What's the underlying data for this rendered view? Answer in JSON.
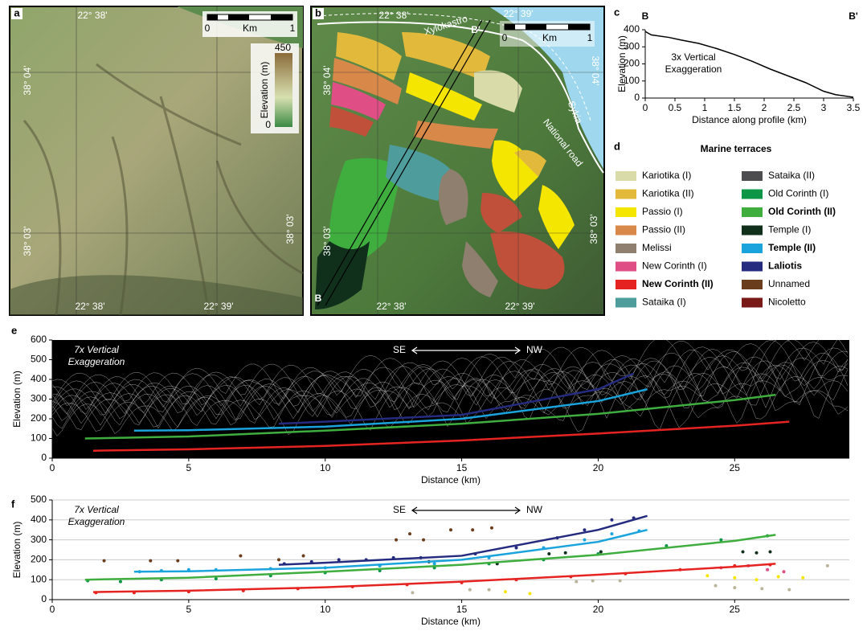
{
  "map_a": {
    "label": "a",
    "top_lon": "22° 38'",
    "scale_zero": "0",
    "scale_unit": "Km",
    "scale_one": "1",
    "colorbar_title": "Elevation (m)",
    "colorbar_max": "450",
    "colorbar_min": "0",
    "left_lat_top": "38° 04'",
    "left_lat_bottom": "38° 03'",
    "right_lat": "38° 03'",
    "bottom_lon_left": "22° 38'",
    "bottom_lon_right": "22° 39'"
  },
  "map_b": {
    "label": "b",
    "top_lon_left": "22° 38'",
    "top_lon_right": "22° 39'",
    "place_1": "Xylokastro",
    "place_2": "Sykia",
    "road": "National road",
    "profile_end": "B'",
    "profile_start": "B",
    "scale_zero": "0",
    "scale_unit": "Km",
    "scale_one": "1",
    "left_lat_top": "38° 04'",
    "left_lat_bottom": "38° 03'",
    "right_lat_top": "38° 04'",
    "right_lat_bottom": "38° 03'",
    "bottom_lon_left": "22° 38'",
    "bottom_lon_right": "22° 39'"
  },
  "legend_d": {
    "label": "d",
    "title": "Marine terraces",
    "items": [
      {
        "label": "Kariotika (I)",
        "color": "#d9dca8",
        "bold": false
      },
      {
        "label": "Kariotika (II)",
        "color": "#e2b93b",
        "bold": false
      },
      {
        "label": "Passio (I)",
        "color": "#f5e600",
        "bold": false
      },
      {
        "label": "Passio (II)",
        "color": "#d8894a",
        "bold": false
      },
      {
        "label": "Melissi",
        "color": "#8e7f6e",
        "bold": false
      },
      {
        "label": "New Corinth (I)",
        "color": "#df4f86",
        "bold": false
      },
      {
        "label": "New Corinth (II)",
        "color": "#e52421",
        "bold": true
      },
      {
        "label": "Sataika (I)",
        "color": "#4f9c9c",
        "bold": false
      },
      {
        "label": "Sataika (II)",
        "color": "#4d4d4f",
        "bold": false
      },
      {
        "label": "Old Corinth (I)",
        "color": "#0d9646",
        "bold": false
      },
      {
        "label": "Old Corinth (II)",
        "color": "#3fae3f",
        "bold": true
      },
      {
        "label": "Temple (I)",
        "color": "#10301c",
        "bold": false
      },
      {
        "label": "Temple (II)",
        "color": "#1aa3dc",
        "bold": true
      },
      {
        "label": "Laliotis",
        "color": "#252c7f",
        "bold": true
      },
      {
        "label": "Unnamed",
        "color": "#6a3e1d",
        "bold": false
      },
      {
        "label": "Nicoletto",
        "color": "#7a1a18",
        "bold": false
      }
    ]
  },
  "chart_data": [
    {
      "type": "line",
      "label": "c",
      "start_label": "B",
      "end_label": "B'",
      "annotation_lines": [
        "3x Vertical",
        "Exaggeration"
      ],
      "annotation_color": "#000000",
      "x_label": "Distance along profile (km)",
      "y_label": "Elevation (m)",
      "xlim": [
        0,
        3.5
      ],
      "ylim": [
        0,
        400
      ],
      "xticks": [
        0,
        0.5,
        1,
        1.5,
        2,
        2.5,
        3,
        3.5
      ],
      "yticks": [
        0,
        100,
        200,
        300,
        400
      ],
      "grid": false,
      "background": "#ffffff",
      "series": [
        {
          "mode": "line",
          "color": "#000000",
          "x": [
            0,
            0.1,
            0.4,
            0.6,
            0.9,
            1.2,
            1.5,
            1.8,
            2.1,
            2.4,
            2.7,
            3.0,
            3.2,
            3.5
          ],
          "values": [
            390,
            370,
            355,
            340,
            320,
            290,
            255,
            215,
            170,
            130,
            90,
            40,
            20,
            5
          ]
        }
      ]
    },
    {
      "type": "line",
      "label": "e",
      "annotation_lines": [
        "7x Vertical",
        "Exaggeration"
      ],
      "annotation_color": "#ffffff",
      "direction_left": "SE",
      "direction_right": "NW",
      "x_label": "Distance (km)",
      "y_label": "Elevation (m)",
      "xlim": [
        0,
        29.2
      ],
      "ylim": [
        0,
        600
      ],
      "xticks": [
        0,
        5,
        10,
        15,
        20,
        25
      ],
      "yticks": [
        0,
        100,
        200,
        300,
        400,
        500,
        600
      ],
      "grid": false,
      "background": "#000000",
      "series": [
        {
          "mode": "line",
          "color": "#e52421",
          "x": [
            1.5,
            5,
            10,
            15,
            20,
            25,
            27
          ],
          "values": [
            38,
            45,
            62,
            90,
            125,
            165,
            185
          ]
        },
        {
          "mode": "line",
          "color": "#3fae3f",
          "x": [
            1.2,
            5,
            10,
            15,
            20,
            25,
            26.5
          ],
          "values": [
            100,
            110,
            140,
            175,
            225,
            295,
            322
          ]
        },
        {
          "mode": "line",
          "color": "#1aa3dc",
          "x": [
            3,
            5,
            10,
            15,
            20,
            21.8
          ],
          "values": [
            140,
            142,
            160,
            200,
            290,
            350
          ]
        },
        {
          "mode": "line",
          "color": "#252c7f",
          "x": [
            8.3,
            10,
            15,
            20,
            21.3
          ],
          "values": [
            175,
            185,
            220,
            350,
            430
          ]
        }
      ]
    },
    {
      "type": "line",
      "label": "f",
      "annotation_lines": [
        "7x Vertical",
        "Exaggeration"
      ],
      "annotation_color": "#000000",
      "direction_left": "SE",
      "direction_right": "NW",
      "x_label": "Distance (km)",
      "y_label": "Elevation (m)",
      "xlim": [
        0,
        29.2
      ],
      "ylim": [
        0,
        500
      ],
      "xticks": [
        0,
        5,
        10,
        15,
        20,
        25
      ],
      "yticks": [
        0,
        100,
        200,
        300,
        400,
        500
      ],
      "grid": true,
      "background": "#ffffff",
      "series": [
        {
          "mode": "markers",
          "color": "#6a3e1d",
          "x": [
            1.9,
            3.6,
            4.6,
            6.9,
            8.3,
            9.2,
            12.6,
            13.1,
            13.6,
            14.6,
            15.4,
            16.1
          ],
          "values": [
            195,
            195,
            195,
            220,
            200,
            220,
            300,
            330,
            300,
            350,
            350,
            360
          ]
        },
        {
          "mode": "markers",
          "color": "#252c7f",
          "x": [
            8.5,
            9.5,
            10.5,
            11.5,
            12.5,
            13.5,
            15.5,
            17,
            18.5,
            19.5,
            20.5,
            21.3
          ],
          "values": [
            180,
            190,
            200,
            200,
            210,
            210,
            230,
            260,
            310,
            350,
            400,
            410
          ]
        },
        {
          "mode": "markers",
          "color": "#1aa3dc",
          "x": [
            3.2,
            4,
            5,
            6,
            8,
            10,
            12,
            14,
            16,
            18,
            19.5,
            20.5,
            21.5
          ],
          "values": [
            140,
            145,
            150,
            150,
            155,
            160,
            170,
            180,
            210,
            260,
            300,
            330,
            345
          ]
        },
        {
          "mode": "markers",
          "color": "#0d9646",
          "x": [
            1.3,
            2.5,
            4,
            6,
            8,
            10,
            12,
            14,
            16,
            18,
            20,
            22.5,
            24.5,
            26.2
          ],
          "values": [
            95,
            90,
            100,
            105,
            120,
            135,
            145,
            160,
            180,
            200,
            230,
            270,
            300,
            320
          ]
        },
        {
          "mode": "markers",
          "color": "#e52421",
          "x": [
            1.6,
            3,
            5,
            7,
            9,
            11,
            13,
            15,
            17,
            19,
            21,
            23,
            25,
            26.3
          ],
          "values": [
            35,
            35,
            40,
            45,
            55,
            65,
            75,
            85,
            100,
            115,
            130,
            150,
            170,
            175
          ]
        },
        {
          "mode": "markers",
          "color": "#10301c",
          "x": [
            13.8,
            16.3,
            18.2,
            18.8,
            20.1,
            25.3,
            25.8,
            26.3
          ],
          "values": [
            190,
            180,
            230,
            235,
            240,
            240,
            235,
            240
          ]
        },
        {
          "mode": "markers",
          "color": "#f5e600",
          "x": [
            16.6,
            17.5,
            24,
            25,
            25.8,
            26.6,
            27.5
          ],
          "values": [
            40,
            30,
            120,
            110,
            100,
            115,
            110
          ]
        },
        {
          "mode": "markers",
          "color": "#b9b39a",
          "x": [
            13.2,
            15.3,
            16,
            19.2,
            19.8,
            20.8,
            24.3,
            25,
            26,
            27,
            28.4
          ],
          "values": [
            35,
            50,
            50,
            90,
            95,
            95,
            70,
            60,
            55,
            50,
            170
          ]
        },
        {
          "mode": "markers",
          "color": "#df4f86",
          "x": [
            24.5,
            25.5,
            26.2,
            26.8
          ],
          "values": [
            160,
            170,
            150,
            140
          ]
        },
        {
          "mode": "line",
          "color": "#e52421",
          "x": [
            1.5,
            5,
            10,
            15,
            20,
            25,
            26.5
          ],
          "values": [
            38,
            45,
            62,
            90,
            125,
            165,
            180
          ]
        },
        {
          "mode": "line",
          "color": "#3fae3f",
          "x": [
            1.2,
            5,
            10,
            15,
            20,
            25,
            26.5
          ],
          "values": [
            100,
            110,
            140,
            175,
            225,
            295,
            325
          ]
        },
        {
          "mode": "line",
          "color": "#1aa3dc",
          "x": [
            3,
            5,
            10,
            15,
            20,
            21.8
          ],
          "values": [
            140,
            142,
            160,
            200,
            290,
            350
          ]
        },
        {
          "mode": "line",
          "color": "#252c7f",
          "x": [
            8.3,
            10,
            15,
            20,
            21.8
          ],
          "values": [
            175,
            185,
            220,
            350,
            420
          ]
        }
      ]
    }
  ]
}
